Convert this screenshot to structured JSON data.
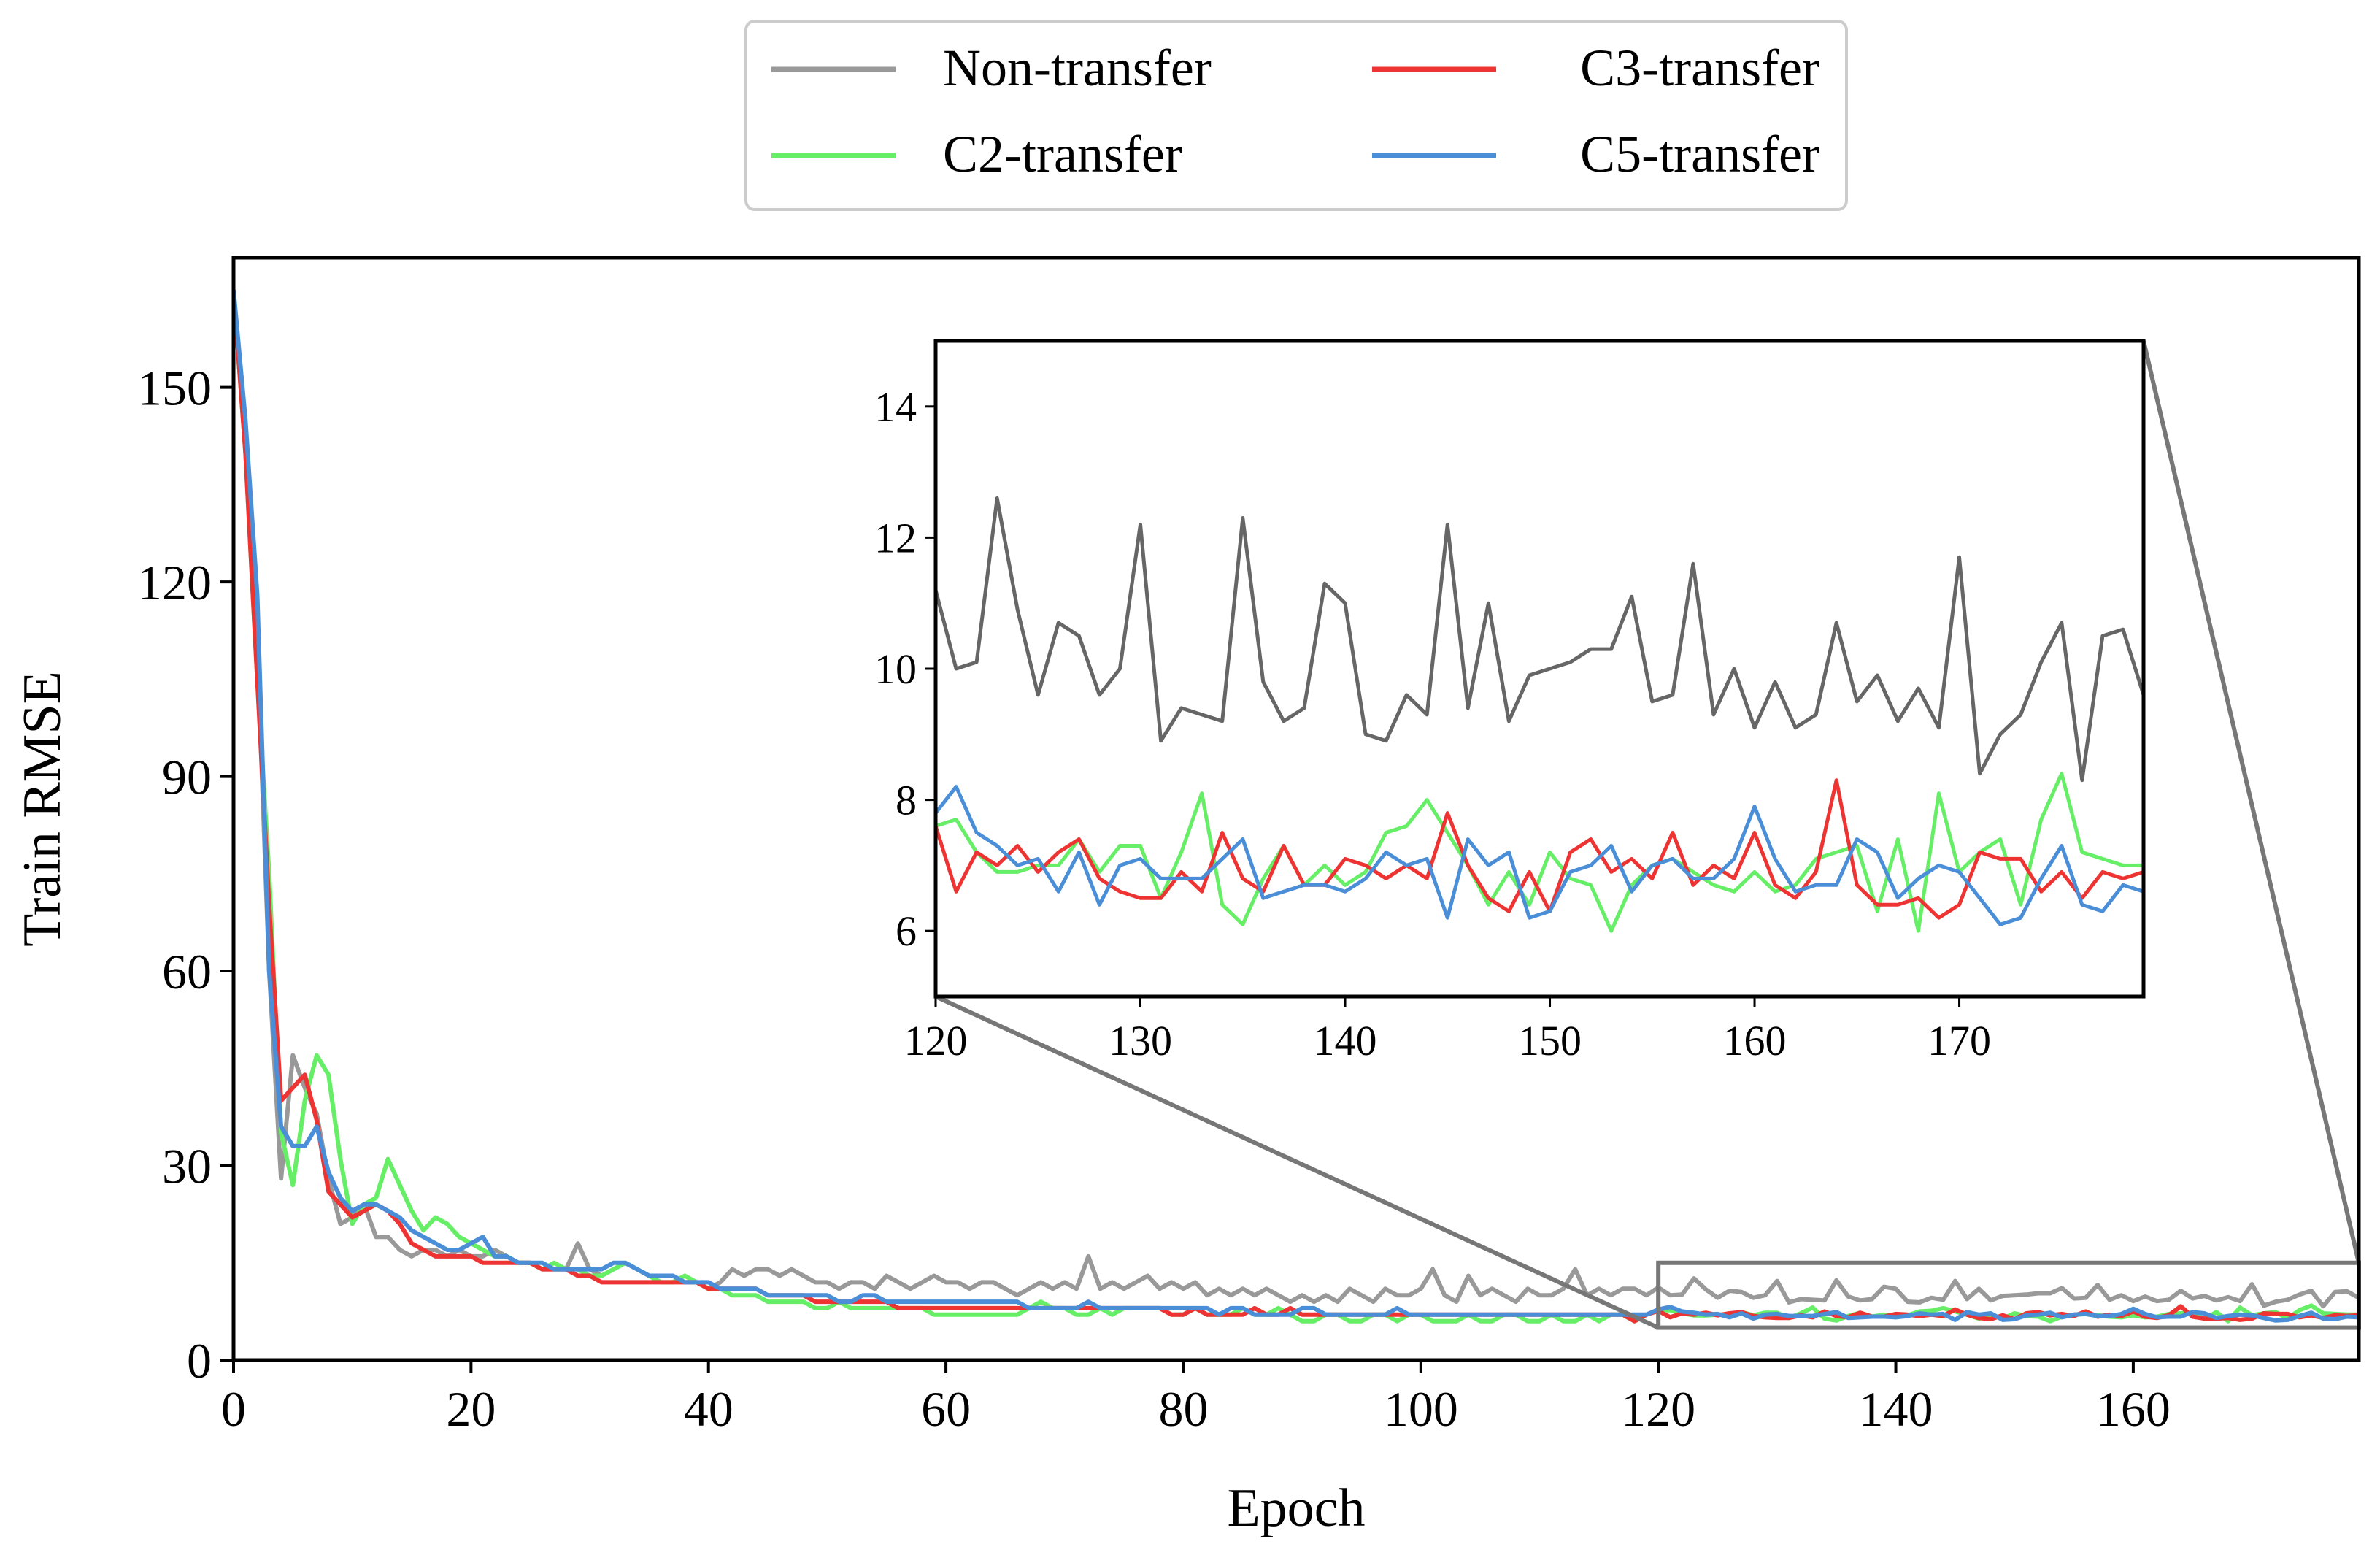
{
  "chart_data": {
    "type": "line",
    "xlabel": "Epoch",
    "ylabel": "Train RMSE",
    "xlim": [
      0,
      179
    ],
    "ylim": [
      0,
      170
    ],
    "xticks": [
      0,
      20,
      40,
      60,
      80,
      100,
      120,
      140,
      160
    ],
    "yticks": [
      0,
      30,
      60,
      90,
      120,
      150
    ],
    "legend": {
      "placement": "top-center, outside plot",
      "entries": [
        "Non-transfer",
        "C3-transfer",
        "C2-transfer",
        "C5-transfer"
      ]
    },
    "colors": {
      "Non-transfer": "#999999",
      "C2-transfer": "#66ee66",
      "C3-transfer": "#ee3333",
      "C5-transfer": "#4a8ed8",
      "inset_non_transfer": "#666666",
      "zoom_box": "#777777"
    },
    "inset": {
      "xlim": [
        120,
        179
      ],
      "ylim": [
        5,
        15
      ],
      "xticks": [
        120,
        130,
        140,
        150,
        160,
        170
      ],
      "yticks": [
        6,
        8,
        10,
        12,
        14
      ]
    },
    "x_start": 0,
    "series": [
      {
        "name": "Non-transfer",
        "values": [
          165,
          140,
          110,
          60,
          28,
          47,
          42,
          38,
          28,
          21,
          22,
          24,
          19,
          19,
          17,
          16,
          17,
          17,
          16,
          17,
          16,
          16,
          17,
          16,
          15,
          15,
          14,
          14,
          14,
          18,
          14,
          13,
          14,
          15,
          14,
          13,
          13,
          13,
          12,
          12,
          11,
          12,
          14,
          13,
          14,
          14,
          13,
          14,
          13,
          12,
          12,
          11,
          12,
          12,
          11,
          13,
          12,
          11,
          12,
          13,
          12,
          12,
          11,
          12,
          12,
          11,
          10,
          11,
          12,
          11,
          12,
          11,
          16,
          11,
          12,
          11,
          12,
          13,
          11,
          12,
          11,
          12,
          10,
          11,
          10,
          11,
          10,
          11,
          10,
          9,
          10,
          9,
          10,
          9,
          11,
          10,
          9,
          11,
          10,
          10,
          11,
          14,
          10,
          9,
          13,
          10,
          11,
          10,
          9,
          11,
          10,
          10,
          11,
          14,
          10,
          11,
          10,
          11,
          11,
          10,
          11.2,
          10.0,
          10.1,
          12.6,
          10.9,
          9.6,
          10.7,
          10.5,
          9.6,
          10.0,
          12.2,
          8.9,
          9.4,
          9.3,
          9.2,
          12.3,
          9.8,
          9.2,
          9.4,
          11.3,
          11.0,
          9.0,
          8.9,
          9.6,
          9.3,
          12.2,
          9.4,
          11.0,
          9.2,
          9.9,
          10.0,
          10.1,
          10.3,
          10.3,
          11.1,
          9.5,
          9.6,
          11.6,
          9.3,
          10.0,
          9.1,
          9.8,
          9.1,
          9.3,
          10.7,
          9.5,
          9.9,
          9.2,
          9.7,
          9.1,
          11.7,
          8.4,
          9.0,
          9.3,
          10.1,
          10.7,
          8.3,
          10.5,
          10.6,
          9.6
        ]
      },
      {
        "name": "C2-transfer",
        "values": [
          165,
          140,
          105,
          75,
          35,
          27,
          40,
          47,
          44,
          31,
          21,
          24,
          25,
          31,
          27,
          23,
          20,
          22,
          21,
          19,
          18,
          17,
          16,
          16,
          15,
          15,
          14,
          15,
          14,
          14,
          13,
          13,
          14,
          15,
          14,
          13,
          12,
          12,
          13,
          12,
          11,
          11,
          10,
          10,
          10,
          9,
          9,
          9,
          9,
          8,
          8,
          9,
          8,
          8,
          8,
          8,
          8,
          8,
          8,
          7,
          7,
          7,
          7,
          7,
          7,
          7,
          7,
          8,
          9,
          8,
          8,
          7,
          7,
          8,
          7,
          8,
          8,
          8,
          8,
          7,
          7,
          8,
          7,
          7,
          7,
          8,
          7,
          7,
          8,
          7,
          6,
          6,
          7,
          7,
          6,
          6,
          7,
          7,
          6,
          7,
          7,
          6,
          6,
          6,
          7,
          6,
          6,
          7,
          7,
          6,
          6,
          7,
          6,
          6,
          7,
          6,
          7,
          7,
          6,
          7,
          7.6,
          7.7,
          7.2,
          6.9,
          6.9,
          7.0,
          7.0,
          7.4,
          6.9,
          7.3,
          7.3,
          6.5,
          7.2,
          8.1,
          6.4,
          6.1,
          6.8,
          7.3,
          6.7,
          7.0,
          6.7,
          6.9,
          7.5,
          7.6,
          8.0,
          7.5,
          7.0,
          6.4,
          6.9,
          6.4,
          7.2,
          6.8,
          6.7,
          6.0,
          6.7,
          7.0,
          7.1,
          6.9,
          6.7,
          6.6,
          6.9,
          6.6,
          6.7,
          7.1,
          7.2,
          7.3,
          6.3,
          7.4,
          6.0,
          8.1,
          6.9,
          7.2,
          7.4,
          6.4,
          7.7,
          8.4,
          7.2,
          7.1,
          7.0,
          7.0
        ]
      },
      {
        "name": "C3-transfer",
        "values": [
          165,
          140,
          105,
          70,
          40,
          42,
          44,
          37,
          26,
          24,
          22,
          23,
          24,
          23,
          21,
          18,
          17,
          16,
          16,
          16,
          16,
          15,
          15,
          15,
          15,
          15,
          14,
          14,
          14,
          13,
          13,
          12,
          12,
          12,
          12,
          12,
          12,
          12,
          12,
          12,
          11,
          11,
          11,
          11,
          11,
          10,
          10,
          10,
          10,
          9,
          9,
          9,
          9,
          9,
          9,
          9,
          8,
          8,
          8,
          8,
          8,
          8,
          8,
          8,
          8,
          8,
          8,
          8,
          8,
          8,
          8,
          8,
          8,
          8,
          8,
          8,
          8,
          8,
          8,
          7,
          7,
          8,
          7,
          7,
          7,
          7,
          8,
          7,
          7,
          8,
          7,
          7,
          7,
          7,
          7,
          7,
          7,
          7,
          7,
          7,
          7,
          7,
          7,
          7,
          7,
          7,
          7,
          7,
          7,
          7,
          7,
          7,
          7,
          7,
          7,
          7,
          7,
          7,
          6,
          7,
          7.6,
          6.6,
          7.2,
          7.0,
          7.3,
          6.9,
          7.2,
          7.4,
          6.8,
          6.6,
          6.5,
          6.5,
          6.9,
          6.6,
          7.5,
          6.8,
          6.6,
          7.3,
          6.7,
          6.7,
          7.1,
          7.0,
          6.8,
          7.0,
          6.8,
          7.8,
          7.0,
          6.5,
          6.3,
          6.9,
          6.3,
          7.2,
          7.4,
          6.9,
          7.1,
          6.8,
          7.5,
          6.7,
          7.0,
          6.8,
          7.5,
          6.7,
          6.5,
          6.9,
          8.3,
          6.7,
          6.4,
          6.4,
          6.5,
          6.2,
          6.4,
          7.2,
          7.1,
          7.1,
          6.6,
          6.9,
          6.5,
          6.9,
          6.8,
          6.9
        ]
      },
      {
        "name": "C5-transfer",
        "values": [
          165,
          145,
          118,
          60,
          36,
          33,
          33,
          36,
          29,
          25,
          23,
          24,
          24,
          23,
          22,
          20,
          19,
          18,
          17,
          17,
          18,
          19,
          16,
          16,
          15,
          15,
          15,
          14,
          14,
          14,
          14,
          14,
          15,
          15,
          14,
          13,
          13,
          13,
          12,
          12,
          12,
          11,
          11,
          11,
          11,
          10,
          10,
          10,
          10,
          10,
          10,
          9,
          9,
          10,
          10,
          9,
          9,
          9,
          9,
          9,
          9,
          9,
          9,
          9,
          9,
          9,
          9,
          8,
          8,
          8,
          8,
          8,
          9,
          8,
          8,
          8,
          8,
          8,
          8,
          8,
          8,
          8,
          8,
          7,
          8,
          8,
          7,
          7,
          7,
          7,
          8,
          8,
          7,
          7,
          7,
          7,
          7,
          7,
          8,
          7,
          7,
          7,
          7,
          7,
          7,
          7,
          7,
          7,
          7,
          7,
          7,
          7,
          7,
          7,
          7,
          7,
          7,
          7,
          7,
          7,
          7.8,
          8.2,
          7.5,
          7.3,
          7.0,
          7.1,
          6.6,
          7.2,
          6.4,
          7.0,
          7.1,
          6.8,
          6.8,
          6.8,
          7.1,
          7.4,
          6.5,
          6.6,
          6.7,
          6.7,
          6.6,
          6.8,
          7.2,
          7.0,
          7.1,
          6.2,
          7.4,
          7.0,
          7.2,
          6.2,
          6.3,
          6.9,
          7.0,
          7.3,
          6.6,
          7.0,
          7.1,
          6.8,
          6.8,
          7.1,
          7.9,
          7.1,
          6.6,
          6.7,
          6.7,
          7.4,
          7.2,
          6.5,
          6.8,
          7.0,
          6.9,
          6.5,
          6.1,
          6.2,
          6.8,
          7.3,
          6.4,
          6.3,
          6.7,
          6.6
        ]
      }
    ]
  }
}
